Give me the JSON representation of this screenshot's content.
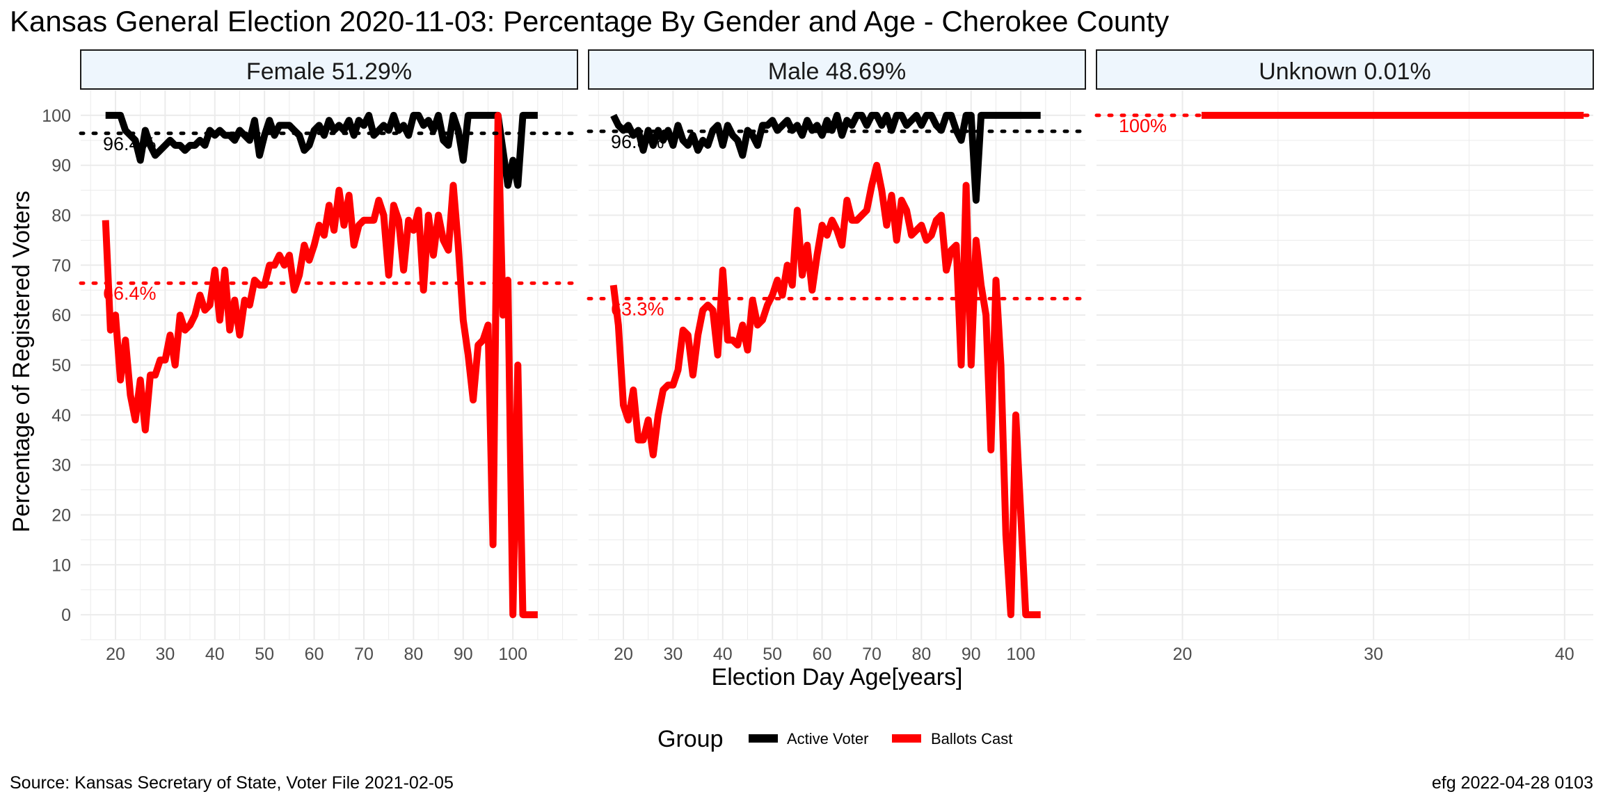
{
  "chart_data": {
    "type": "line",
    "title": "Kansas General Election 2020-11-03:  Percentage By Gender and Age - Cherokee County",
    "xlabel": "Election Day Age[years]",
    "ylabel": "Percentage of Registered Voters",
    "ylim": [
      -5,
      105
    ],
    "yticks": [
      0,
      10,
      20,
      30,
      40,
      50,
      60,
      70,
      80,
      90,
      100
    ],
    "grid": true,
    "legend": {
      "title": "Group",
      "position": "bottom",
      "entries": [
        {
          "label": "Active Voter",
          "color": "#000000"
        },
        {
          "label": "Ballots Cast",
          "color": "#ff0000"
        }
      ]
    },
    "caption_left": "Source:  Kansas Secretary of State, Voter File  2021-02-05",
    "caption_right": "efg 2022-04-28 0103",
    "panels": [
      {
        "strip": "Female 51.29%",
        "xlim": [
          13,
          113
        ],
        "xticks": [
          20,
          30,
          40,
          50,
          60,
          70,
          80,
          90,
          100
        ],
        "series": [
          {
            "name": "Active Voter",
            "color": "#000000",
            "mean": 96.4,
            "mean_label": "96.4%",
            "x": [
              18,
              19,
              20,
              21,
              22,
              23,
              24,
              25,
              26,
              27,
              28,
              29,
              30,
              31,
              32,
              33,
              34,
              35,
              36,
              37,
              38,
              39,
              40,
              41,
              42,
              43,
              44,
              45,
              46,
              47,
              48,
              49,
              50,
              51,
              52,
              53,
              54,
              55,
              56,
              57,
              58,
              59,
              60,
              61,
              62,
              63,
              64,
              65,
              66,
              67,
              68,
              69,
              70,
              71,
              72,
              73,
              74,
              75,
              76,
              77,
              78,
              79,
              80,
              81,
              82,
              83,
              84,
              85,
              86,
              87,
              88,
              89,
              90,
              91,
              92,
              93,
              94,
              95,
              96,
              97,
              98,
              99,
              100,
              101,
              102,
              103,
              104,
              105
            ],
            "y": [
              100,
              100,
              100,
              100,
              97,
              96,
              95,
              91,
              97,
              94,
              92,
              93,
              94,
              95,
              94,
              94,
              93,
              94,
              94,
              95,
              94,
              97,
              96,
              97,
              96,
              96,
              95,
              97,
              96,
              95,
              99,
              92,
              96,
              99,
              96,
              98,
              98,
              98,
              97,
              96,
              93,
              94,
              97,
              98,
              96,
              99,
              97,
              98,
              97,
              99,
              96,
              99,
              98,
              100,
              96,
              97,
              98,
              97,
              100,
              97,
              98,
              96,
              100,
              100,
              98,
              99,
              97,
              100,
              95,
              94,
              100,
              97,
              91,
              100,
              100,
              100,
              100,
              100,
              100,
              100,
              93,
              86,
              91,
              86,
              100,
              100,
              100,
              100
            ]
          },
          {
            "name": "Ballots Cast",
            "color": "#ff0000",
            "mean": 66.4,
            "mean_label": "66.4%",
            "x": [
              18,
              19,
              20,
              21,
              22,
              23,
              24,
              25,
              26,
              27,
              28,
              29,
              30,
              31,
              32,
              33,
              34,
              35,
              36,
              37,
              38,
              39,
              40,
              41,
              42,
              43,
              44,
              45,
              46,
              47,
              48,
              49,
              50,
              51,
              52,
              53,
              54,
              55,
              56,
              57,
              58,
              59,
              60,
              61,
              62,
              63,
              64,
              65,
              66,
              67,
              68,
              69,
              70,
              71,
              72,
              73,
              74,
              75,
              76,
              77,
              78,
              79,
              80,
              81,
              82,
              83,
              84,
              85,
              86,
              87,
              88,
              89,
              90,
              91,
              92,
              93,
              94,
              95,
              96,
              97,
              98,
              99,
              100,
              101,
              102,
              103,
              104,
              105
            ],
            "y": [
              79,
              57,
              60,
              47,
              55,
              44,
              39,
              47,
              37,
              48,
              48,
              51,
              51,
              56,
              50,
              60,
              57,
              58,
              60,
              64,
              61,
              62,
              69,
              59,
              69,
              57,
              63,
              56,
              63,
              62,
              67,
              66,
              66,
              70,
              70,
              72,
              70,
              72,
              65,
              68,
              74,
              71,
              74,
              78,
              76,
              82,
              77,
              85,
              78,
              84,
              74,
              78,
              79,
              79,
              79,
              83,
              80,
              68,
              82,
              79,
              69,
              79,
              77,
              81,
              65,
              80,
              72,
              80,
              75,
              73,
              86,
              74,
              59,
              52,
              43,
              54,
              55,
              58,
              14,
              100,
              60,
              67,
              0,
              50,
              0,
              0,
              0,
              0
            ]
          }
        ]
      },
      {
        "strip": "Male 48.69%",
        "xlim": [
          13,
          113
        ],
        "xticks": [
          20,
          30,
          40,
          50,
          60,
          70,
          80,
          90,
          100
        ],
        "series": [
          {
            "name": "Active Voter",
            "color": "#000000",
            "mean": 96.8,
            "mean_label": "96.8%",
            "x": [
              18,
              19,
              20,
              21,
              22,
              23,
              24,
              25,
              26,
              27,
              28,
              29,
              30,
              31,
              32,
              33,
              34,
              35,
              36,
              37,
              38,
              39,
              40,
              41,
              42,
              43,
              44,
              45,
              46,
              47,
              48,
              49,
              50,
              51,
              52,
              53,
              54,
              55,
              56,
              57,
              58,
              59,
              60,
              61,
              62,
              63,
              64,
              65,
              66,
              67,
              68,
              69,
              70,
              71,
              72,
              73,
              74,
              75,
              76,
              77,
              78,
              79,
              80,
              81,
              82,
              83,
              84,
              85,
              86,
              87,
              88,
              89,
              90,
              91,
              92,
              93,
              94,
              95,
              96,
              97,
              98,
              99,
              100,
              101,
              102,
              103,
              104
            ],
            "y": [
              100,
              98,
              97,
              98,
              96,
              97,
              93,
              97,
              94,
              97,
              95,
              97,
              94,
              98,
              95,
              94,
              96,
              93,
              95,
              94,
              97,
              98,
              94,
              98,
              96,
              95,
              92,
              97,
              96,
              94,
              98,
              98,
              99,
              97,
              98,
              99,
              97,
              98,
              96,
              99,
              97,
              98,
              96,
              99,
              97,
              100,
              96,
              99,
              98,
              100,
              100,
              98,
              100,
              100,
              98,
              100,
              97,
              100,
              100,
              98,
              99,
              100,
              98,
              100,
              100,
              98,
              97,
              100,
              100,
              97,
              95,
              100,
              100,
              83,
              100,
              100,
              100,
              100,
              100,
              100,
              100,
              100,
              100,
              100,
              100,
              100,
              100
            ]
          },
          {
            "name": "Ballots Cast",
            "color": "#ff0000",
            "mean": 63.3,
            "mean_label": "63.3%",
            "x": [
              18,
              19,
              20,
              21,
              22,
              23,
              24,
              25,
              26,
              27,
              28,
              29,
              30,
              31,
              32,
              33,
              34,
              35,
              36,
              37,
              38,
              39,
              40,
              41,
              42,
              43,
              44,
              45,
              46,
              47,
              48,
              49,
              50,
              51,
              52,
              53,
              54,
              55,
              56,
              57,
              58,
              59,
              60,
              61,
              62,
              63,
              64,
              65,
              66,
              67,
              68,
              69,
              70,
              71,
              72,
              73,
              74,
              75,
              76,
              77,
              78,
              79,
              80,
              81,
              82,
              83,
              84,
              85,
              86,
              87,
              88,
              89,
              90,
              91,
              92,
              93,
              94,
              95,
              96,
              97,
              98,
              99,
              100,
              101,
              102,
              103,
              104
            ],
            "y": [
              66,
              58,
              42,
              39,
              45,
              35,
              35,
              39,
              32,
              40,
              45,
              46,
              46,
              49,
              57,
              56,
              48,
              56,
              61,
              62,
              61,
              52,
              69,
              55,
              55,
              54,
              58,
              53,
              63,
              58,
              59,
              62,
              64,
              67,
              64,
              70,
              66,
              81,
              68,
              74,
              65,
              72,
              78,
              76,
              79,
              77,
              74,
              83,
              79,
              79,
              80,
              81,
              86,
              90,
              85,
              78,
              84,
              75,
              83,
              81,
              76,
              77,
              78,
              75,
              76,
              79,
              80,
              69,
              73,
              74,
              50,
              86,
              50,
              75,
              66,
              60,
              33,
              67,
              50,
              16,
              0,
              40,
              20,
              0,
              0,
              0,
              0
            ]
          }
        ]
      },
      {
        "strip": "Unknown 0.01%",
        "xlim": [
          15.5,
          41.5
        ],
        "xticks": [
          20,
          30,
          40
        ],
        "series": [
          {
            "name": "Ballots Cast",
            "color": "#ff0000",
            "mean": 100,
            "mean_label": "100%",
            "x": [
              21,
              41
            ],
            "y": [
              100,
              100
            ]
          }
        ]
      }
    ]
  }
}
